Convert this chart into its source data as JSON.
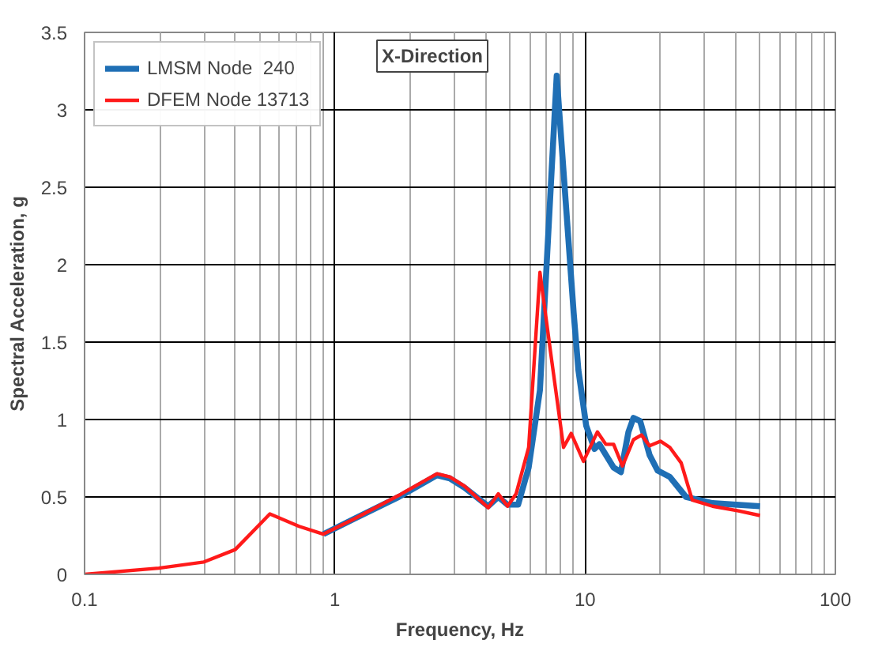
{
  "chart_data": {
    "type": "line",
    "xlabel": "Frequency, Hz",
    "ylabel": "Spectral Acceleration, g",
    "log": "x",
    "xlim": [
      0.1,
      100
    ],
    "xticks": [
      0.1,
      1,
      10,
      100
    ],
    "ylim": [
      0,
      3.5
    ],
    "yticks": [
      0,
      0.5,
      1,
      1.5,
      2,
      2.5,
      3,
      3.5
    ],
    "grid": true,
    "legend": "top left",
    "annotations": [
      "X-Direction"
    ],
    "series": [
      {
        "name": "LMSM Node  240",
        "color": "#1f6fb5",
        "x": [
          0.9,
          1.2,
          1.8,
          2.56,
          2.88,
          3.3,
          4.1,
          4.5,
          4.9,
          5.4,
          5.95,
          6.6,
          7.7,
          9.0,
          9.4,
          10.1,
          10.9,
          11.4,
          13.0,
          13.9,
          14.9,
          15.6,
          16.6,
          18.1,
          19.5,
          21.8,
          25.3,
          32.3,
          50
        ],
        "values": [
          0.26,
          0.36,
          0.5,
          0.64,
          0.62,
          0.56,
          0.44,
          0.5,
          0.45,
          0.45,
          0.69,
          1.19,
          3.22,
          1.69,
          1.32,
          0.96,
          0.81,
          0.84,
          0.69,
          0.66,
          0.92,
          1.01,
          0.99,
          0.77,
          0.67,
          0.63,
          0.5,
          0.46,
          0.44
        ]
      },
      {
        "name": "DFEM Node 13713",
        "color": "#ff1a1a",
        "x": [
          0.1,
          0.198,
          0.3,
          0.4,
          0.55,
          0.72,
          0.9,
          1.2,
          1.8,
          2.56,
          2.88,
          3.3,
          4.1,
          4.5,
          4.9,
          5.3,
          5.95,
          6.6,
          7.3,
          8.2,
          8.8,
          9.85,
          11.2,
          12.1,
          13.0,
          14.1,
          15.6,
          16.8,
          18.1,
          20,
          21.8,
          24.2,
          26.8,
          32.3,
          41,
          50
        ],
        "values": [
          0.0,
          0.04,
          0.08,
          0.16,
          0.39,
          0.31,
          0.26,
          0.36,
          0.51,
          0.65,
          0.63,
          0.57,
          0.43,
          0.52,
          0.44,
          0.52,
          0.82,
          1.95,
          1.42,
          0.82,
          0.91,
          0.73,
          0.92,
          0.84,
          0.84,
          0.7,
          0.87,
          0.9,
          0.83,
          0.86,
          0.82,
          0.72,
          0.48,
          0.44,
          0.41,
          0.38
        ]
      }
    ]
  }
}
